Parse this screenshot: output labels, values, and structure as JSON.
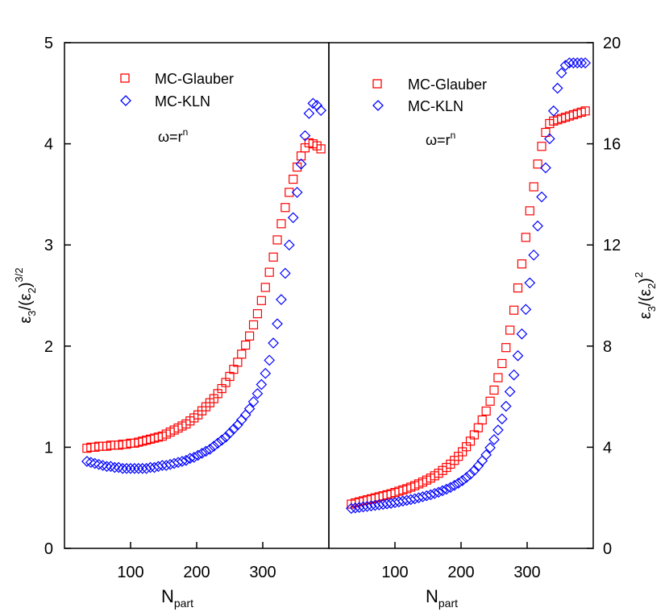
{
  "chart_data": [
    {
      "type": "scatter",
      "panel": "left",
      "ylabel": "ε3/(ε2)^3/2",
      "xlabel": "Npart",
      "xlim": [
        0,
        400
      ],
      "ylim": [
        0,
        5
      ],
      "xticks": [
        "100",
        "200",
        "300"
      ],
      "yticks": [
        "0",
        "1",
        "2",
        "3",
        "4",
        "5"
      ],
      "annotation": "ω=r^n",
      "legend": [
        "MC-Glauber",
        "MC-KLN"
      ],
      "legend_position": "top-left",
      "series": [
        {
          "name": "MC-Glauber",
          "marker": "square",
          "color": "#ff0000",
          "x": [
            34,
            40,
            46,
            52,
            58,
            64,
            70,
            76,
            82,
            88,
            94,
            100,
            106,
            112,
            118,
            124,
            130,
            136,
            142,
            148,
            154,
            160,
            166,
            172,
            178,
            184,
            190,
            196,
            202,
            208,
            214,
            220,
            226,
            232,
            238,
            244,
            250,
            256,
            262,
            268,
            274,
            280,
            286,
            292,
            298,
            304,
            310,
            316,
            322,
            328,
            334,
            340,
            346,
            352,
            358,
            364,
            370,
            376,
            382,
            388
          ],
          "y": [
            0.99,
            1.0,
            1.0,
            1.01,
            1.01,
            1.01,
            1.02,
            1.02,
            1.02,
            1.03,
            1.03,
            1.04,
            1.04,
            1.05,
            1.06,
            1.07,
            1.08,
            1.09,
            1.1,
            1.11,
            1.13,
            1.15,
            1.17,
            1.19,
            1.21,
            1.23,
            1.26,
            1.29,
            1.32,
            1.36,
            1.4,
            1.44,
            1.48,
            1.53,
            1.58,
            1.64,
            1.7,
            1.77,
            1.84,
            1.92,
            2.01,
            2.1,
            2.21,
            2.32,
            2.45,
            2.58,
            2.73,
            2.88,
            3.05,
            3.21,
            3.37,
            3.52,
            3.65,
            3.77,
            3.88,
            3.96,
            4.01,
            4.0,
            3.98,
            3.95
          ]
        },
        {
          "name": "MC-KLN",
          "marker": "diamond",
          "color": "#0000ff",
          "x": [
            34,
            40,
            46,
            52,
            58,
            64,
            70,
            76,
            82,
            88,
            94,
            100,
            106,
            112,
            118,
            124,
            130,
            136,
            142,
            148,
            154,
            160,
            166,
            172,
            178,
            184,
            190,
            196,
            202,
            208,
            214,
            220,
            226,
            232,
            238,
            244,
            250,
            256,
            262,
            268,
            274,
            280,
            286,
            292,
            298,
            304,
            310,
            316,
            322,
            328,
            334,
            340,
            346,
            352,
            358,
            364,
            370,
            376,
            382,
            388
          ],
          "y": [
            0.86,
            0.85,
            0.84,
            0.83,
            0.82,
            0.81,
            0.81,
            0.8,
            0.8,
            0.79,
            0.79,
            0.79,
            0.79,
            0.79,
            0.79,
            0.79,
            0.8,
            0.8,
            0.81,
            0.82,
            0.82,
            0.83,
            0.84,
            0.85,
            0.86,
            0.87,
            0.89,
            0.9,
            0.92,
            0.94,
            0.96,
            0.98,
            1.01,
            1.04,
            1.07,
            1.1,
            1.14,
            1.18,
            1.22,
            1.27,
            1.32,
            1.38,
            1.45,
            1.53,
            1.62,
            1.73,
            1.86,
            2.03,
            2.22,
            2.46,
            2.72,
            3.0,
            3.27,
            3.52,
            3.8,
            4.08,
            4.3,
            4.4,
            4.38,
            4.33
          ]
        }
      ]
    },
    {
      "type": "scatter",
      "panel": "right",
      "ylabel": "ε3/(ε2)^2",
      "xlabel": "Npart",
      "xlim": [
        0,
        400
      ],
      "ylim": [
        0,
        20
      ],
      "xticks": [
        "100",
        "200",
        "300"
      ],
      "yticks": [
        "0",
        "4",
        "8",
        "12",
        "16",
        "20"
      ],
      "annotation": "ω=r^n",
      "legend": [
        "MC-Glauber",
        "MC-KLN"
      ],
      "legend_position": "top-left",
      "series": [
        {
          "name": "MC-Glauber",
          "marker": "square",
          "color": "#ff0000",
          "x": [
            34,
            40,
            46,
            52,
            58,
            64,
            70,
            76,
            82,
            88,
            94,
            100,
            106,
            112,
            118,
            124,
            130,
            136,
            142,
            148,
            154,
            160,
            166,
            172,
            178,
            184,
            190,
            196,
            202,
            208,
            214,
            220,
            226,
            232,
            238,
            244,
            250,
            256,
            262,
            268,
            274,
            280,
            286,
            292,
            298,
            304,
            310,
            316,
            322,
            328,
            334,
            340,
            346,
            352,
            358,
            364,
            370,
            376,
            382,
            388
          ],
          "y": [
            1.75,
            1.8,
            1.84,
            1.88,
            1.92,
            1.96,
            2.0,
            2.04,
            2.08,
            2.12,
            2.16,
            2.21,
            2.26,
            2.31,
            2.36,
            2.42,
            2.48,
            2.55,
            2.62,
            2.7,
            2.78,
            2.87,
            2.97,
            3.08,
            3.2,
            3.33,
            3.48,
            3.64,
            3.82,
            4.02,
            4.24,
            4.49,
            4.77,
            5.08,
            5.43,
            5.82,
            6.26,
            6.75,
            7.31,
            7.94,
            8.63,
            9.42,
            10.3,
            11.25,
            12.3,
            13.35,
            14.3,
            15.2,
            15.9,
            16.45,
            16.8,
            16.9,
            16.95,
            17.0,
            17.05,
            17.1,
            17.15,
            17.2,
            17.25,
            17.3
          ]
        },
        {
          "name": "MC-KLN",
          "marker": "diamond",
          "color": "#0000ff",
          "x": [
            34,
            40,
            46,
            52,
            58,
            64,
            70,
            76,
            82,
            88,
            94,
            100,
            106,
            112,
            118,
            124,
            130,
            136,
            142,
            148,
            154,
            160,
            166,
            172,
            178,
            184,
            190,
            196,
            202,
            208,
            214,
            220,
            226,
            232,
            238,
            244,
            250,
            256,
            262,
            268,
            274,
            280,
            286,
            292,
            298,
            304,
            310,
            316,
            322,
            328,
            334,
            340,
            346,
            352,
            358,
            364,
            370,
            376,
            382,
            388
          ],
          "y": [
            1.58,
            1.6,
            1.62,
            1.64,
            1.66,
            1.68,
            1.7,
            1.72,
            1.74,
            1.76,
            1.78,
            1.81,
            1.84,
            1.87,
            1.9,
            1.93,
            1.96,
            2.0,
            2.04,
            2.08,
            2.12,
            2.17,
            2.22,
            2.28,
            2.34,
            2.41,
            2.49,
            2.58,
            2.68,
            2.8,
            2.93,
            3.08,
            3.26,
            3.46,
            3.7,
            3.98,
            4.3,
            4.68,
            5.12,
            5.62,
            6.2,
            6.86,
            7.62,
            8.48,
            9.45,
            10.5,
            11.6,
            12.75,
            13.9,
            15.05,
            16.2,
            17.3,
            18.2,
            18.8,
            19.1,
            19.2,
            19.2,
            19.2,
            19.2,
            19.2
          ]
        }
      ]
    }
  ]
}
